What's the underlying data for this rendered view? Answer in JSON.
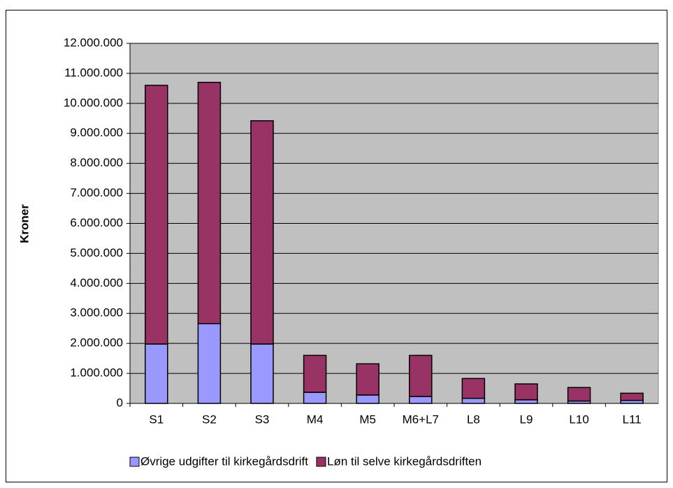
{
  "chart_data": {
    "type": "stacked_bar",
    "ylabel": "Kroner",
    "categories": [
      "S1",
      "S2",
      "S3",
      "M4",
      "M5",
      "M6+L7",
      "L8",
      "L9",
      "L10",
      "L11"
    ],
    "series": [
      {
        "name": "Øvrige udgifter til kirkegårdsdrift",
        "color": "#9999ff",
        "values": [
          1980000,
          2660000,
          1980000,
          370000,
          280000,
          230000,
          170000,
          120000,
          80000,
          100000
        ]
      },
      {
        "name": "Løn til selve kirkegårdsdriften",
        "color": "#993366",
        "values": [
          8620000,
          8040000,
          7440000,
          1230000,
          1040000,
          1370000,
          660000,
          530000,
          450000,
          240000
        ]
      }
    ],
    "ylim": [
      0,
      12000000
    ],
    "yticks": [
      0,
      {
        "value": 1000000,
        "label": "1.000.000"
      },
      {
        "value": 2000000,
        "label": "2.000.000"
      },
      {
        "value": 3000000,
        "label": "3.000.000"
      },
      {
        "value": 4000000,
        "label": "4.000.000"
      },
      {
        "value": 5000000,
        "label": "5.000.000"
      },
      {
        "value": 6000000,
        "label": "6.000.000"
      },
      {
        "value": 7000000,
        "label": "7.000.000"
      },
      {
        "value": 8000000,
        "label": "8.000.000"
      },
      {
        "value": 9000000,
        "label": "9.000.000"
      },
      {
        "value": 10000000,
        "label": "10.000.000"
      },
      {
        "value": 11000000,
        "label": "11.000.000"
      },
      {
        "value": 12000000,
        "label": "12.000.000"
      }
    ],
    "grid": true,
    "legend": "bottom"
  }
}
